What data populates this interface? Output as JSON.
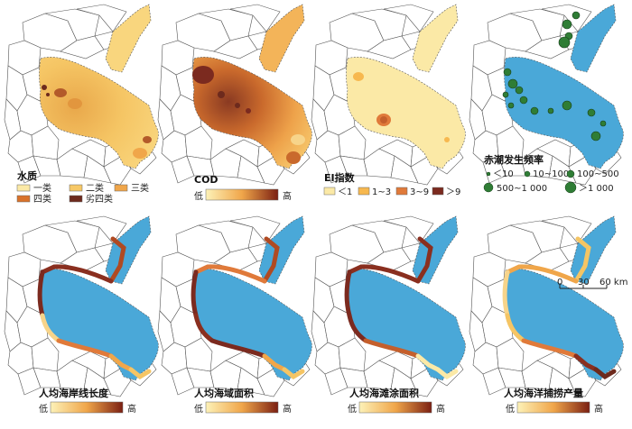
{
  "colors": {
    "sea": "#4aa8d8",
    "land_stroke": "#555555",
    "sea_stroke": "#666666",
    "yellow_light": "#fbe9a6",
    "yellow": "#f7c866",
    "orange": "#f0a64a",
    "orange_dark": "#d9722a",
    "red_dark": "#8a2f1f",
    "brown": "#6d2a1d",
    "green": "#2f7d35"
  },
  "panels": [
    {
      "id": "water-quality",
      "title": "水质",
      "legend_type": "categories",
      "legend_items": [
        {
          "label": "一类",
          "color": "#fbe9a6"
        },
        {
          "label": "二类",
          "color": "#f7c866"
        },
        {
          "label": "三类",
          "color": "#f0a64a"
        },
        {
          "label": "四类",
          "color": "#d9722a"
        },
        {
          "label": "劣四类",
          "color": "#6d2a1d"
        }
      ]
    },
    {
      "id": "cod",
      "title": "COD",
      "legend_type": "gradient",
      "low": "低",
      "high": "高"
    },
    {
      "id": "ei-index",
      "title": "EI指数",
      "legend_type": "categories",
      "legend_items": [
        {
          "label": "＜1",
          "color": "#fbe9a6"
        },
        {
          "label": "1~3",
          "color": "#f7b84f"
        },
        {
          "label": "3~9",
          "color": "#e07a3a"
        },
        {
          "label": "＞9",
          "color": "#7b2a1f"
        }
      ]
    },
    {
      "id": "red-tide",
      "title": "赤潮发生频率",
      "legend_type": "circles",
      "legend_items": [
        {
          "label": "＜10"
        },
        {
          "label": "10~100"
        },
        {
          "label": "100~500"
        },
        {
          "label": "500~1 000"
        },
        {
          "label": "＞1 000"
        }
      ]
    },
    {
      "id": "coastline",
      "title": "人均海岸线长度",
      "legend_type": "gradient",
      "low": "低",
      "high": "高"
    },
    {
      "id": "sea-area",
      "title": "人均海域面积",
      "legend_type": "gradient",
      "low": "低",
      "high": "高"
    },
    {
      "id": "tidal-flat",
      "title": "人均海滩涂面积",
      "legend_type": "gradient",
      "low": "低",
      "high": "高"
    },
    {
      "id": "fishing",
      "title": "人均海洋捕捞产量",
      "legend_type": "gradient",
      "low": "低",
      "high": "高"
    }
  ],
  "scale_bar": {
    "labels": [
      "0",
      "30",
      "60 km"
    ]
  }
}
